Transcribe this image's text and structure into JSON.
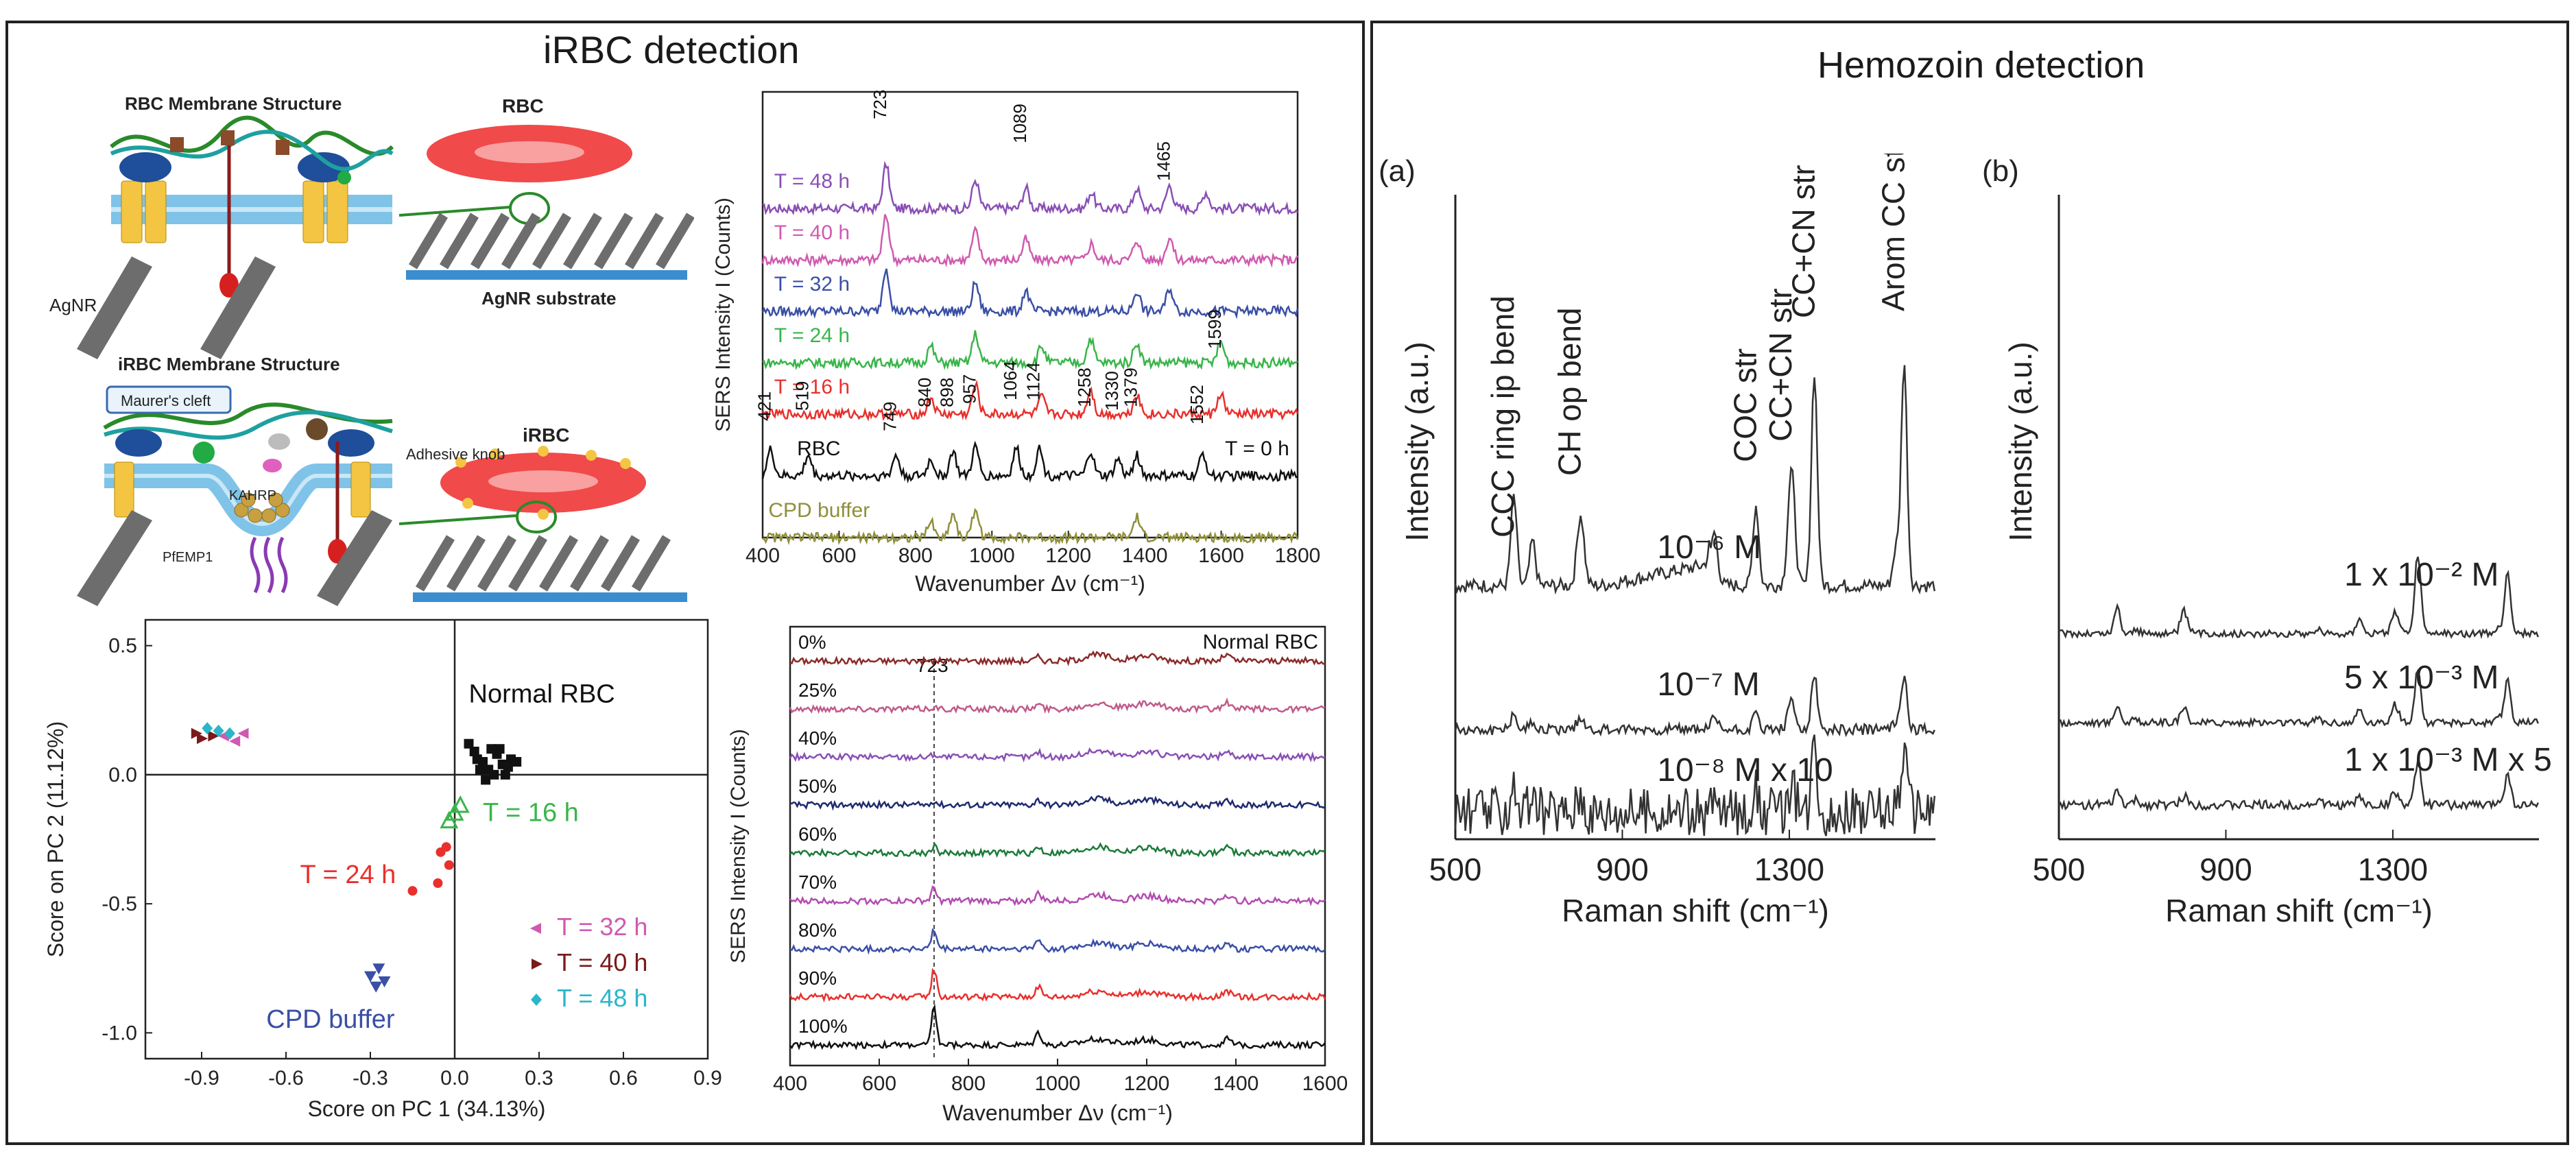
{
  "left_panel": {
    "title": "iRBC detection",
    "schematic_top": {
      "title": "RBC Membrane Structure",
      "labels": {
        "nanorod": "AgNR",
        "cell": "RBC",
        "substrate": "AgNR substrate"
      }
    },
    "schematic_bottom": {
      "title": "iRBC Membrane Structure",
      "labels": {
        "cleft": "Maurer's cleft",
        "knob": "Adhesive knob",
        "cell": "iRBC",
        "protein1": "KAHRP",
        "protein2": "PfEMP1"
      }
    }
  },
  "right_panel": {
    "title": "Hemozoin detection"
  },
  "chart_data": [
    {
      "id": "sers-time",
      "type": "line",
      "xlabel": "Wavenumber Δν (cm⁻¹)",
      "ylabel": "SERS Intensity I (Counts)",
      "xlim": [
        400,
        1800
      ],
      "xticks": [
        "400",
        "600",
        "800",
        "1000",
        "1200",
        "1400",
        "1600",
        "1800"
      ],
      "series": [
        {
          "name": "T = 48 h",
          "color": "#8a4fb5",
          "peaks": [
            723,
            957,
            1089,
            1260,
            1379,
            1465,
            1560
          ]
        },
        {
          "name": "T = 40 h",
          "color": "#d05ab0",
          "peaks": [
            723,
            957,
            1089,
            1260,
            1379,
            1465
          ]
        },
        {
          "name": "T = 32 h",
          "color": "#3a4fa6",
          "peaks": [
            723,
            957,
            1089,
            1379,
            1465
          ]
        },
        {
          "name": "T = 24 h",
          "color": "#39b54a",
          "peaks": [
            840,
            957,
            1130,
            1258,
            1379,
            1599
          ]
        },
        {
          "name": "T = 16 h",
          "color": "#e8302c",
          "peaks": [
            840,
            957,
            1130,
            1258,
            1379,
            1599
          ]
        },
        {
          "name": "RBC",
          "color": "#111111",
          "peaks": [
            421,
            519,
            749,
            840,
            898,
            957,
            1064,
            1124,
            1258,
            1330,
            1379,
            1552
          ]
        },
        {
          "name": "CPD buffer",
          "color": "#8f8f3a",
          "peaks": [
            840,
            898,
            957,
            1379
          ]
        }
      ],
      "peak_labels": [
        "723",
        "1089",
        "1465",
        "1599",
        "421",
        "519",
        "749",
        "840",
        "898",
        "957",
        "1064",
        "1124",
        "1258",
        "1330",
        "1379",
        "1552"
      ],
      "annotation": "T = 0 h"
    },
    {
      "id": "pca",
      "type": "scatter",
      "xlabel": "Score on PC 1 (34.13%)",
      "ylabel": "Score on PC 2 (11.12%)",
      "xlim": [
        -1.1,
        0.9
      ],
      "ylim": [
        -1.1,
        0.6
      ],
      "xticks": [
        "-0.9",
        "-0.6",
        "-0.3",
        "0.0",
        "0.3",
        "0.6",
        "0.9"
      ],
      "yticks": [
        "0.5",
        "0.0",
        "-0.5",
        "-1.0"
      ],
      "groups": [
        {
          "name": "Normal RBC",
          "color": "#111111",
          "marker": "square",
          "points": [
            [
              0.1,
              0.05
            ],
            [
              0.12,
              0.02
            ],
            [
              0.15,
              0.08
            ],
            [
              0.17,
              0.04
            ],
            [
              0.13,
              0.1
            ],
            [
              0.08,
              0.06
            ],
            [
              0.18,
              0.0
            ],
            [
              0.2,
              0.06
            ],
            [
              0.05,
              0.12
            ],
            [
              0.11,
              -0.02
            ],
            [
              0.14,
              0.0
            ],
            [
              0.16,
              0.1
            ],
            [
              0.09,
              0.02
            ],
            [
              0.19,
              0.03
            ],
            [
              0.22,
              0.05
            ],
            [
              0.07,
              0.09
            ]
          ]
        },
        {
          "name": "T = 16 h",
          "color": "#39b54a",
          "marker": "triangle-open",
          "points": [
            [
              0.0,
              -0.15
            ],
            [
              0.02,
              -0.12
            ],
            [
              -0.02,
              -0.18
            ]
          ]
        },
        {
          "name": "T = 24 h",
          "color": "#e8302c",
          "marker": "dot",
          "points": [
            [
              -0.05,
              -0.3
            ],
            [
              -0.02,
              -0.35
            ],
            [
              -0.06,
              -0.42
            ],
            [
              -0.15,
              -0.45
            ],
            [
              -0.03,
              -0.28
            ]
          ]
        },
        {
          "name": "T = 32 h",
          "color": "#d05ab0",
          "marker": "triangle-left",
          "points": [
            [
              -0.82,
              0.15
            ],
            [
              -0.78,
              0.13
            ],
            [
              -0.75,
              0.16
            ]
          ]
        },
        {
          "name": "T = 40 h",
          "color": "#7a1a1a",
          "marker": "triangle-right",
          "points": [
            [
              -0.92,
              0.16
            ],
            [
              -0.9,
              0.14
            ],
            [
              -0.86,
              0.15
            ]
          ]
        },
        {
          "name": "T = 48 h",
          "color": "#2bb6c9",
          "marker": "diamond",
          "points": [
            [
              -0.88,
              0.18
            ],
            [
              -0.84,
              0.17
            ],
            [
              -0.8,
              0.16
            ]
          ]
        },
        {
          "name": "CPD buffer",
          "color": "#3a4fa6",
          "marker": "triangle-down",
          "points": [
            [
              -0.3,
              -0.78
            ],
            [
              -0.27,
              -0.75
            ],
            [
              -0.25,
              -0.8
            ],
            [
              -0.28,
              -0.82
            ]
          ]
        }
      ],
      "legend": [
        "T = 32 h",
        "T = 40 h",
        "T = 48 h"
      ],
      "labels": [
        "Normal RBC",
        "T = 16 h",
        "T = 24 h",
        "CPD buffer"
      ]
    },
    {
      "id": "sers-parasitemia",
      "type": "line",
      "xlabel": "Wavenumber Δν (cm⁻¹)",
      "ylabel": "SERS Intensity I (Counts)",
      "xlim": [
        400,
        1600
      ],
      "xticks": [
        "400",
        "600",
        "800",
        "1000",
        "1200",
        "1400",
        "1600"
      ],
      "series": [
        {
          "name": "0%",
          "color": "#8b2a2a",
          "peak723": 0.0
        },
        {
          "name": "25%",
          "color": "#c05a8a",
          "peak723": 0.05
        },
        {
          "name": "40%",
          "color": "#8a4fb5",
          "peak723": 0.08
        },
        {
          "name": "50%",
          "color": "#1f2a6e",
          "peak723": 0.12
        },
        {
          "name": "60%",
          "color": "#1c7a3a",
          "peak723": 0.2
        },
        {
          "name": "70%",
          "color": "#b24bb0",
          "peak723": 0.35
        },
        {
          "name": "80%",
          "color": "#3a4fa6",
          "peak723": 0.5
        },
        {
          "name": "90%",
          "color": "#e8302c",
          "peak723": 0.75
        },
        {
          "name": "100%",
          "color": "#111111",
          "peak723": 1.0
        }
      ],
      "legend": "Normal RBC",
      "marker_label": "723"
    },
    {
      "id": "hemozoin-a",
      "type": "line",
      "panel_label": "(a)",
      "xlabel": "Raman shift (cm⁻¹)",
      "ylabel": "Intensity (a.u.)",
      "xlim": [
        500,
        1650
      ],
      "xticks": [
        "500",
        "900",
        "1300"
      ],
      "series": [
        {
          "name": "10⁻⁶ M",
          "color": "#333333"
        },
        {
          "name": "10⁻⁷ M",
          "color": "#333333"
        },
        {
          "name": "10⁻⁸ M   x 10",
          "color": "#333333"
        }
      ],
      "band_labels": [
        "CCC ring ip bend",
        "CH op bend",
        "COC str",
        "CC+CN str",
        "CC+CN str",
        "Arom CC str"
      ]
    },
    {
      "id": "hemozoin-b",
      "type": "line",
      "panel_label": "(b)",
      "xlabel": "Raman shift (cm⁻¹)",
      "ylabel": "Intensity (a.u.)",
      "xlim": [
        500,
        1650
      ],
      "xticks": [
        "500",
        "900",
        "1300"
      ],
      "series": [
        {
          "name": "1 x 10⁻² M",
          "color": "#333333"
        },
        {
          "name": "5 x 10⁻³ M",
          "color": "#333333"
        },
        {
          "name": "1 x 10⁻³ M   x 5",
          "color": "#333333"
        }
      ]
    }
  ]
}
